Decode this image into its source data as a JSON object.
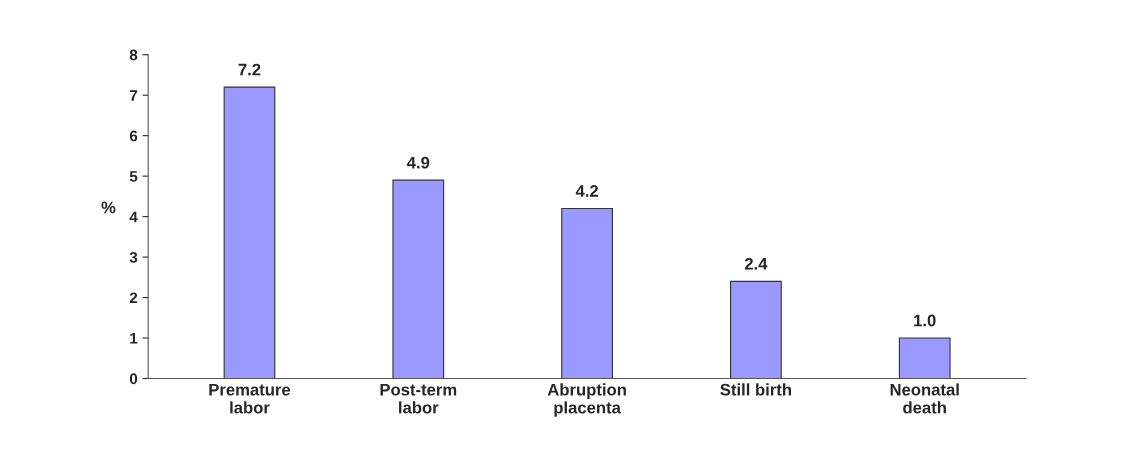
{
  "chart_data": {
    "type": "bar",
    "ylabel": "%",
    "categories": [
      "Premature\nlabor",
      "Post-term\nlabor",
      "Abruption\nplacenta",
      "Still birth",
      "Neonatal\ndeath"
    ],
    "values": [
      7.2,
      4.9,
      4.2,
      2.4,
      1.0
    ],
    "color": "#9999ff",
    "ylim": [
      0,
      8
    ],
    "yticks": [
      0,
      1,
      2,
      3,
      4,
      5,
      6,
      7,
      8
    ],
    "value_labels": [
      "7.2",
      "4.9",
      "4.2",
      "2.4",
      "1.0"
    ],
    "grid": false,
    "legend": false
  }
}
